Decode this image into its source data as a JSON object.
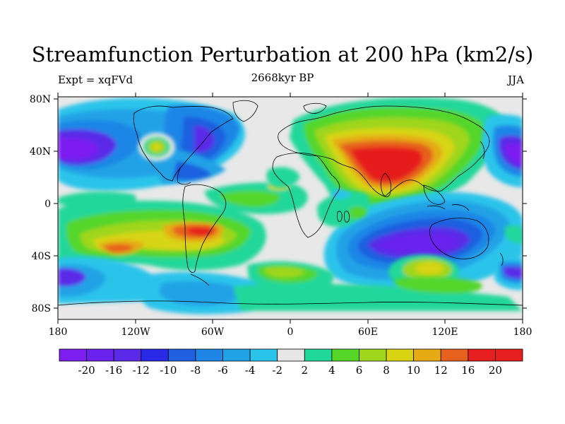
{
  "title": "Streamfunction Perturbation at 200 hPa (km2/s)",
  "subtitle_left": "Expt = xqFVd",
  "subtitle_center": "2668kyr BP",
  "subtitle_right": "JJA",
  "axes": {
    "x_ticks": [
      "180",
      "120W",
      "60W",
      "0",
      "60E",
      "120E",
      "180"
    ],
    "y_ticks": [
      "80N",
      "40N",
      "0",
      "40S",
      "80S"
    ]
  },
  "colorbar": {
    "labels": [
      "-20",
      "-16",
      "-12",
      "-10",
      "-8",
      "-6",
      "-4",
      "-2",
      "2",
      "4",
      "6",
      "8",
      "10",
      "12",
      "16",
      "20"
    ],
    "colors": [
      "#7c1ff0",
      "#6b22ee",
      "#5a2ae8",
      "#2a2ae6",
      "#1f5fe0",
      "#1f86e6",
      "#21a2e6",
      "#2ac4ea",
      "#e6e6e6",
      "#22d79a",
      "#55d629",
      "#9fd61c",
      "#d8d414",
      "#e6aa14",
      "#e6601e",
      "#e61e1e",
      "#e61e1e"
    ]
  },
  "map": {
    "background_color": "#e8e8e8",
    "features": [
      {
        "name": "siberia-asia-high",
        "color": "#e61e1e",
        "value": "20"
      },
      {
        "name": "south-pacific-high",
        "color": "#e6601e",
        "value": "16"
      },
      {
        "name": "south-america-high",
        "color": "#e6601e",
        "value": "16"
      },
      {
        "name": "indian-ocean-low",
        "color": "#6b22ee",
        "value": "-16"
      },
      {
        "name": "north-pacific-low",
        "color": "#6b22ee",
        "value": "-16"
      },
      {
        "name": "north-atlantic-low",
        "color": "#5a2ae8",
        "value": "-12"
      }
    ]
  }
}
